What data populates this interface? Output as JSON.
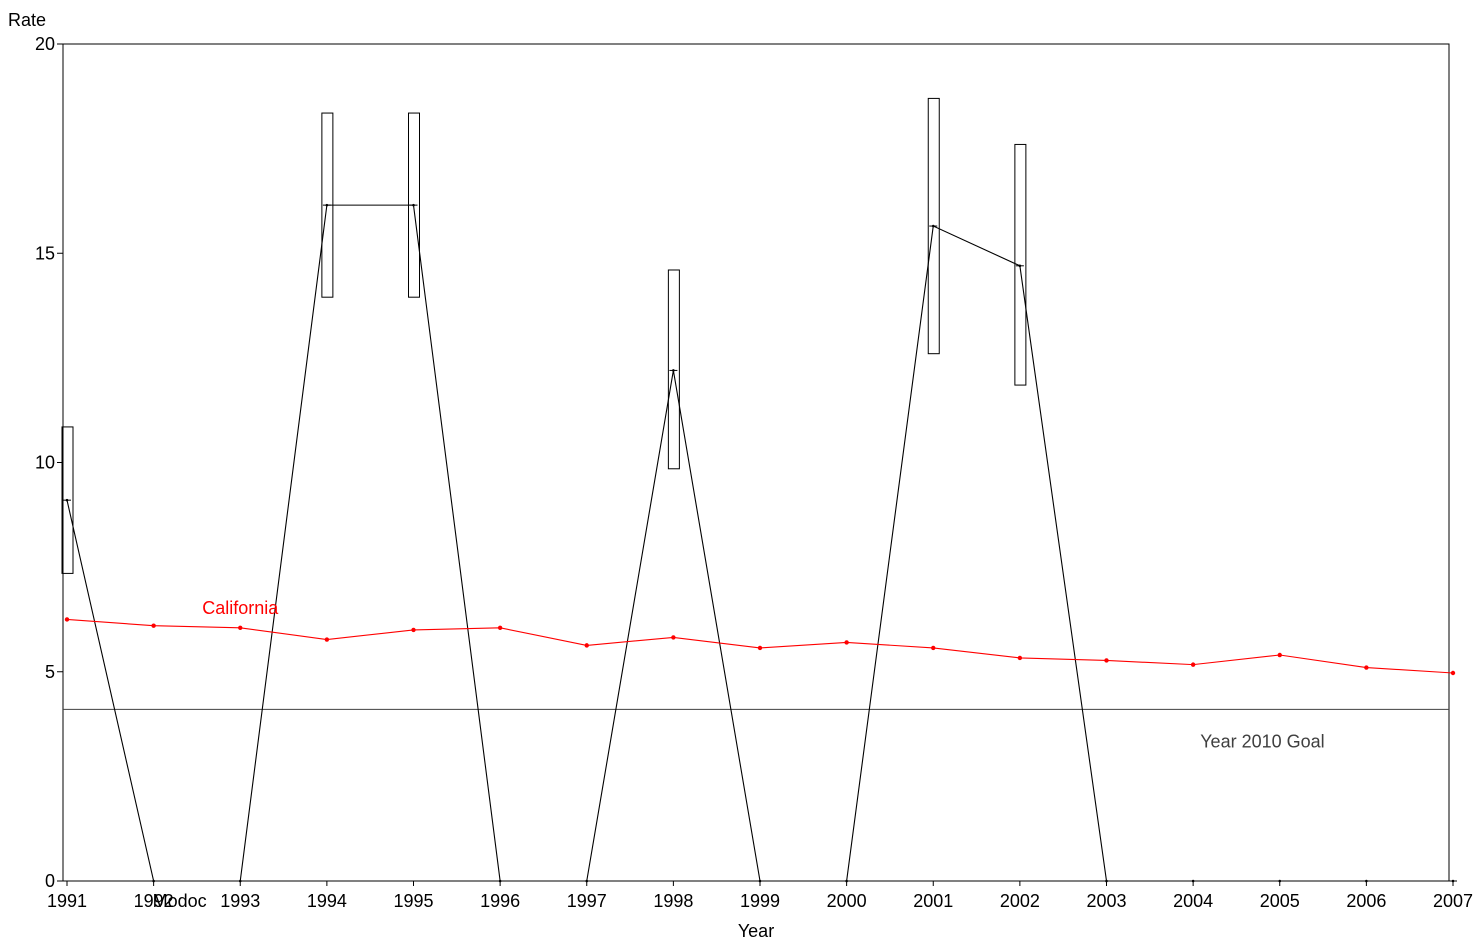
{
  "chart_data": {
    "type": "line",
    "title": "",
    "xlabel": "Year",
    "ylabel": "Rate",
    "x": [
      1991,
      1992,
      1993,
      1994,
      1995,
      1996,
      1997,
      1998,
      1999,
      2000,
      2001,
      2002,
      2003,
      2004,
      2005,
      2006,
      2007
    ],
    "x_tick_labels": [
      "1991",
      "1992",
      "1993",
      "1994",
      "1995",
      "1996",
      "1997",
      "1998",
      "1999",
      "2000",
      "2001",
      "2002",
      "2003",
      "2004",
      "2005",
      "2006",
      "2007"
    ],
    "y_ticks": [
      0,
      5,
      10,
      15,
      20
    ],
    "y_tick_labels": [
      "0",
      "5",
      "10",
      "15",
      "20"
    ],
    "xlim": [
      1991,
      2007
    ],
    "ylim": [
      0,
      20
    ],
    "grid": false,
    "legend": "none",
    "series": [
      {
        "name": "Modoc",
        "color": "#000000",
        "values": [
          9.1,
          0,
          0,
          16.15,
          16.15,
          0,
          0,
          12.2,
          0,
          0,
          15.65,
          14.7,
          0,
          0,
          0,
          0,
          0
        ],
        "ci_low": [
          7.35,
          null,
          null,
          13.95,
          13.95,
          null,
          null,
          9.85,
          null,
          null,
          12.6,
          11.85,
          null,
          null,
          null,
          null,
          null
        ],
        "ci_high": [
          10.85,
          null,
          null,
          18.35,
          18.35,
          null,
          null,
          14.6,
          null,
          null,
          18.7,
          17.6,
          null,
          null,
          null,
          null,
          null
        ],
        "label_at": 1992.3
      },
      {
        "name": "California",
        "color": "#ff0000",
        "values": [
          6.25,
          6.1,
          6.05,
          5.77,
          6.0,
          6.05,
          5.63,
          5.82,
          5.57,
          5.7,
          5.57,
          5.33,
          5.27,
          5.17,
          5.4,
          5.1,
          4.97
        ],
        "label_at": 1993.0
      }
    ],
    "reference_lines": [
      {
        "label": "Year 2010 Goal",
        "value": 4.1,
        "color": "#404040",
        "label_at": 2004.8
      }
    ]
  }
}
